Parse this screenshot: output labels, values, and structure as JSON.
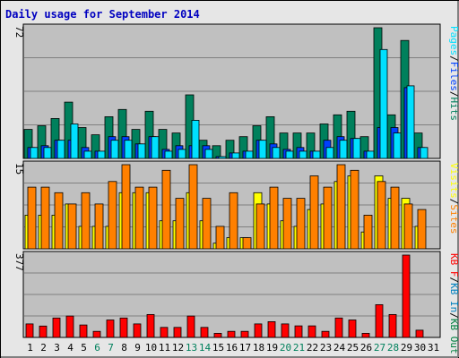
{
  "chart_data": {
    "type": "bar",
    "title": "Daily usage for September 2014",
    "categories": [
      "1",
      "2",
      "3",
      "4",
      "5",
      "6",
      "7",
      "8",
      "9",
      "10",
      "11",
      "12",
      "13",
      "14",
      "15",
      "16",
      "17",
      "18",
      "19",
      "20",
      "21",
      "22",
      "23",
      "24",
      "25",
      "26",
      "27",
      "28",
      "29",
      "30",
      "31"
    ],
    "weekend_days": [
      6,
      7,
      13,
      14,
      20,
      21,
      27,
      28
    ],
    "colors": {
      "hits": "#00805c",
      "files": "#0040ff",
      "pages": "#00e0ff",
      "visits": "#ffff00",
      "sites": "#ff8000",
      "kbin": "#0080c0",
      "kbout": "#008040",
      "kbf": "#ff0000",
      "weekend": "#00805c",
      "weekday": "#000000",
      "title": "#0000c0",
      "panel_bg": "#c0c0c0",
      "frame_bg": "#e6e6e6"
    },
    "panels": [
      {
        "name": "requests",
        "ymax_label": "72",
        "ymax": 72,
        "legend": [
          {
            "text": "Pages",
            "color": "#00e0ff"
          },
          {
            "text": "/",
            "color": "#000000"
          },
          {
            "text": "Files",
            "color": "#0040ff"
          },
          {
            "text": "/",
            "color": "#000000"
          },
          {
            "text": "Hits",
            "color": "#00805c"
          }
        ],
        "series": [
          {
            "key": "hits",
            "values": [
              16,
              18,
              22,
              31,
              17,
              13,
              23,
              27,
              16,
              26,
              16,
              14,
              35,
              10,
              7,
              10,
              12,
              18,
              23,
              14,
              14,
              14,
              19,
              24,
              26,
              12,
              72,
              24,
              65,
              14,
              0
            ]
          },
          {
            "key": "files",
            "values": [
              6,
              7,
              10,
              10,
              6,
              4,
              12,
              12,
              8,
              12,
              5,
              7,
              7,
              7,
              1,
              3,
              4,
              10,
              8,
              5,
              6,
              4,
              10,
              12,
              11,
              4,
              17,
              17,
              39,
              6,
              0
            ]
          },
          {
            "key": "pages",
            "values": [
              6,
              6,
              10,
              19,
              4,
              4,
              10,
              10,
              8,
              12,
              4,
              5,
              21,
              5,
              1,
              3,
              4,
              10,
              6,
              4,
              4,
              4,
              6,
              10,
              11,
              4,
              60,
              14,
              40,
              6,
              0
            ]
          }
        ]
      },
      {
        "name": "visitors",
        "ymax_label": "15",
        "ymax": 15,
        "legend": [
          {
            "text": "Visits",
            "color": "#ffff00"
          },
          {
            "text": "/",
            "color": "#000000"
          },
          {
            "text": "Sites",
            "color": "#ff8000"
          }
        ],
        "series": [
          {
            "key": "visits",
            "values": [
              6,
              6,
              6,
              8,
              4,
              4,
              4,
              10,
              10,
              10,
              5,
              5,
              10,
              5,
              1,
              2,
              2,
              10,
              8,
              5,
              4,
              7,
              8,
              12,
              13,
              3,
              13,
              9,
              9,
              4,
              0
            ]
          },
          {
            "key": "sites",
            "values": [
              11,
              11,
              10,
              8,
              10,
              8,
              12,
              15,
              11,
              11,
              14,
              9,
              15,
              9,
              4,
              10,
              2,
              8,
              11,
              9,
              9,
              13,
              11,
              15,
              14,
              6,
              12,
              11,
              8,
              7,
              0
            ]
          }
        ]
      },
      {
        "name": "kbytes",
        "ymax_label": "377",
        "ymax": 377,
        "legend": [
          {
            "text": "KB F",
            "color": "#ff0000"
          },
          {
            "text": "/",
            "color": "#000000"
          },
          {
            "text": "KB In",
            "color": "#0080c0"
          },
          {
            "text": "/",
            "color": "#000000"
          },
          {
            "text": "KB Out",
            "color": "#008040"
          }
        ],
        "series": [
          {
            "key": "kbf",
            "values": [
              62,
              52,
              89,
              98,
              57,
              28,
              80,
              89,
              62,
              105,
              46,
              46,
              98,
              46,
              19,
              28,
              28,
              62,
              72,
              62,
              53,
              53,
              28,
              89,
              80,
              19,
              150,
              105,
              377,
              33,
              0
            ]
          }
        ]
      }
    ]
  }
}
